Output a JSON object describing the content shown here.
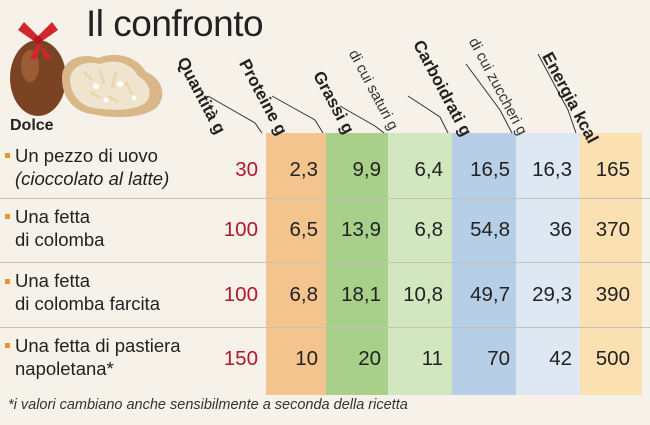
{
  "title": "Il confronto",
  "first_column_label": "Dolce",
  "headers": {
    "quantita": "Quantità g",
    "proteine": "Proteine g",
    "grassi": "Grassi g",
    "grassi_saturi": "di cui saturi g",
    "carboidrati": "Carboidrati g",
    "zuccheri": "di cui zuccheri g",
    "energia": "Energia kcal"
  },
  "rows": [
    {
      "name_line1": "Un pezzo di uovo",
      "name_line2": "(cioccolato al latte)",
      "quantita": "30",
      "proteine": "2,3",
      "grassi": "9,9",
      "saturi": "6,4",
      "carboidrati": "16,5",
      "zuccheri": "16,3",
      "energia": "165"
    },
    {
      "name_line1": "Una fetta",
      "name_line2": "di colomba",
      "quantita": "100",
      "proteine": "6,5",
      "grassi": "13,9",
      "saturi": "6,8",
      "carboidrati": "54,8",
      "zuccheri": "36",
      "energia": "370"
    },
    {
      "name_line1": "Una fetta",
      "name_line2": "di colomba farcita",
      "quantita": "100",
      "proteine": "6,8",
      "grassi": "18,1",
      "saturi": "10,8",
      "carboidrati": "49,7",
      "zuccheri": "29,3",
      "energia": "390"
    },
    {
      "name_line1": "Una fetta di pastiera",
      "name_line2": "napoletana*",
      "quantita": "150",
      "proteine": "10",
      "grassi": "20",
      "saturi": "11",
      "carboidrati": "70",
      "zuccheri": "42",
      "energia": "500"
    }
  ],
  "footnote": "*i valori cambiano anche sensibilmente a seconda della ricetta",
  "colors": {
    "background": "#f6f2ea",
    "proteine": "#f4c48f",
    "grassi": "#a9d08a",
    "saturi": "#d2e7bf",
    "carboidrati": "#b7cfe6",
    "zuccheri": "#dde8f3",
    "energia": "#fbe0b2",
    "quantita_text": "#b1162b",
    "bullet": "#e49a2a"
  }
}
